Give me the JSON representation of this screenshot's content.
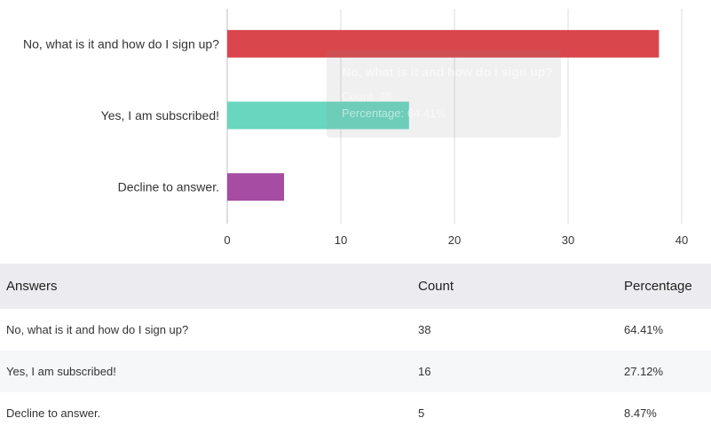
{
  "chart_data": {
    "type": "bar",
    "orientation": "horizontal",
    "categories": [
      "No, what is it and how do I sign up?",
      "Yes, I am subscribed!",
      "Decline to answer."
    ],
    "values": [
      38,
      16,
      5
    ],
    "colors": [
      "#d9474c",
      "#69d7bf",
      "#a74ca3"
    ],
    "xlim": [
      0,
      40
    ],
    "xticks": [
      "0",
      "10",
      "20",
      "30",
      "40"
    ],
    "grid": "vertical"
  },
  "tooltip": {
    "title": "No, what is it and how do I sign up?",
    "count_line": "Count: 38",
    "percentage_line": "Percentage: 64.41%"
  },
  "table": {
    "headers": [
      "Answers",
      "Count",
      "Percentage"
    ],
    "rows": [
      [
        "No, what is it and how do I sign up?",
        "38",
        "64.41%"
      ],
      [
        "Yes, I am subscribed!",
        "16",
        "27.12%"
      ],
      [
        "Decline to answer.",
        "5",
        "8.47%"
      ]
    ]
  }
}
